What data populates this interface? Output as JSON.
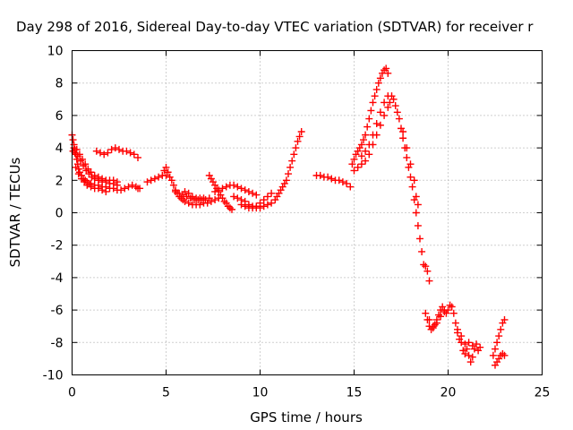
{
  "chart_data": {
    "type": "scatter",
    "title": "Day 298 of 2016, Sidereal Day-to-day VTEC variation (SDTVAR) for receiver r",
    "xlabel": "GPS time / hours",
    "ylabel": "SDTVAR / TECUs",
    "xlim": [
      0,
      25
    ],
    "ylim": [
      -10,
      10
    ],
    "xticks": [
      0,
      5,
      10,
      15,
      20,
      25
    ],
    "xtick_labels": [
      "0",
      "5",
      "10",
      "15",
      "20",
      "25"
    ],
    "yticks": [
      -10,
      -8,
      -6,
      -4,
      -2,
      0,
      2,
      4,
      6,
      8,
      10
    ],
    "ytick_labels": [
      "-10",
      "-8",
      "-6",
      "-4",
      "-2",
      "0",
      "2",
      "4",
      "6",
      "8",
      "10"
    ],
    "grid": true,
    "marker": "plus",
    "color": "#ff0000",
    "series": [
      {
        "points": [
          [
            0.0,
            4.8
          ],
          [
            0.05,
            4.5
          ],
          [
            0.1,
            4.2
          ],
          [
            0.15,
            3.9
          ],
          [
            0.2,
            3.6
          ],
          [
            0.25,
            3.3
          ],
          [
            0.3,
            3.0
          ],
          [
            0.35,
            2.7
          ],
          [
            0.4,
            2.5
          ],
          [
            0.5,
            2.3
          ],
          [
            0.6,
            2.1
          ],
          [
            0.7,
            2.0
          ],
          [
            0.8,
            1.9
          ],
          [
            0.9,
            1.8
          ],
          [
            1.0,
            1.8
          ],
          [
            1.2,
            1.7
          ],
          [
            1.4,
            1.7
          ],
          [
            1.6,
            1.6
          ],
          [
            1.8,
            1.6
          ],
          [
            2.0,
            1.5
          ],
          [
            2.2,
            1.5
          ],
          [
            2.4,
            1.4
          ],
          [
            2.6,
            1.4
          ],
          [
            2.8,
            1.5
          ],
          [
            3.0,
            1.6
          ],
          [
            3.2,
            1.7
          ],
          [
            3.4,
            1.6
          ],
          [
            3.5,
            1.5
          ],
          [
            0.05,
            3.8
          ],
          [
            0.15,
            3.7
          ],
          [
            0.3,
            3.5
          ],
          [
            0.45,
            3.2
          ],
          [
            0.6,
            2.9
          ],
          [
            0.75,
            2.6
          ],
          [
            0.9,
            2.4
          ],
          [
            1.05,
            2.2
          ],
          [
            1.2,
            2.1
          ],
          [
            1.4,
            2.0
          ],
          [
            1.6,
            1.9
          ],
          [
            1.8,
            1.9
          ],
          [
            2.0,
            1.8
          ],
          [
            2.2,
            1.8
          ],
          [
            2.4,
            1.7
          ],
          [
            0.1,
            4.0
          ],
          [
            0.25,
            3.9
          ],
          [
            0.4,
            3.6
          ],
          [
            0.55,
            3.3
          ],
          [
            0.7,
            3.0
          ],
          [
            0.85,
            2.7
          ],
          [
            1.0,
            2.5
          ],
          [
            1.2,
            2.3
          ],
          [
            1.4,
            2.2
          ],
          [
            1.6,
            2.1
          ],
          [
            1.8,
            2.0
          ],
          [
            2.0,
            2.0
          ],
          [
            2.2,
            2.0
          ],
          [
            2.4,
            1.9
          ],
          [
            0.2,
            2.8
          ],
          [
            0.35,
            2.4
          ],
          [
            0.5,
            2.1
          ],
          [
            0.65,
            1.9
          ],
          [
            0.8,
            1.7
          ],
          [
            1.0,
            1.6
          ],
          [
            1.2,
            1.5
          ],
          [
            1.4,
            1.5
          ],
          [
            1.6,
            1.4
          ],
          [
            1.8,
            1.3
          ],
          [
            1.3,
            3.8
          ],
          [
            1.5,
            3.7
          ],
          [
            1.7,
            3.6
          ],
          [
            1.9,
            3.7
          ],
          [
            2.1,
            3.9
          ],
          [
            2.3,
            4.0
          ],
          [
            2.5,
            3.9
          ],
          [
            2.7,
            3.8
          ],
          [
            2.9,
            3.8
          ],
          [
            3.1,
            3.7
          ],
          [
            3.3,
            3.6
          ],
          [
            3.5,
            3.4
          ],
          [
            3.6,
            1.5
          ],
          [
            5.2,
            2.2
          ],
          [
            5.0,
            2.3
          ],
          [
            4.8,
            2.3
          ],
          [
            4.6,
            2.2
          ],
          [
            4.4,
            2.1
          ],
          [
            4.2,
            2.0
          ],
          [
            4.0,
            1.9
          ],
          [
            5.0,
            2.8
          ],
          [
            4.9,
            2.6
          ],
          [
            5.1,
            2.5
          ],
          [
            5.3,
            2.0
          ],
          [
            5.4,
            1.7
          ],
          [
            5.5,
            1.4
          ],
          [
            5.6,
            1.2
          ],
          [
            5.7,
            1.0
          ],
          [
            5.8,
            0.9
          ],
          [
            5.9,
            0.8
          ],
          [
            6.0,
            0.7
          ],
          [
            6.2,
            0.6
          ],
          [
            6.4,
            0.5
          ],
          [
            6.6,
            0.5
          ],
          [
            6.8,
            0.5
          ],
          [
            7.0,
            0.6
          ],
          [
            7.2,
            0.6
          ],
          [
            7.4,
            0.7
          ],
          [
            7.6,
            0.8
          ],
          [
            7.8,
            0.9
          ],
          [
            5.5,
            1.3
          ],
          [
            5.7,
            1.2
          ],
          [
            5.9,
            1.1
          ],
          [
            6.1,
            1.0
          ],
          [
            6.3,
            0.9
          ],
          [
            6.5,
            0.8
          ],
          [
            6.7,
            0.8
          ],
          [
            6.9,
            0.8
          ],
          [
            7.1,
            0.8
          ],
          [
            7.3,
            0.9
          ],
          [
            6.0,
            1.3
          ],
          [
            6.2,
            1.2
          ],
          [
            6.4,
            1.0
          ],
          [
            6.6,
            0.9
          ],
          [
            6.8,
            0.9
          ],
          [
            7.0,
            0.9
          ],
          [
            7.3,
            2.3
          ],
          [
            7.4,
            2.1
          ],
          [
            7.5,
            1.9
          ],
          [
            7.6,
            1.7
          ],
          [
            7.7,
            1.5
          ],
          [
            7.8,
            1.3
          ],
          [
            7.9,
            1.1
          ],
          [
            8.0,
            0.9
          ],
          [
            8.1,
            0.7
          ],
          [
            8.2,
            0.6
          ],
          [
            8.3,
            0.4
          ],
          [
            8.4,
            0.3
          ],
          [
            8.5,
            0.2
          ],
          [
            7.6,
            1.3
          ],
          [
            7.8,
            1.4
          ],
          [
            8.0,
            1.5
          ],
          [
            8.2,
            1.6
          ],
          [
            8.4,
            1.7
          ],
          [
            8.6,
            1.7
          ],
          [
            8.8,
            1.6
          ],
          [
            9.0,
            1.5
          ],
          [
            9.2,
            1.4
          ],
          [
            9.4,
            1.3
          ],
          [
            9.6,
            1.2
          ],
          [
            9.8,
            1.1
          ],
          [
            8.6,
            1.0
          ],
          [
            8.8,
            0.9
          ],
          [
            9.0,
            0.8
          ],
          [
            9.2,
            0.7
          ],
          [
            9.4,
            0.5
          ],
          [
            9.6,
            0.4
          ],
          [
            9.8,
            0.3
          ],
          [
            10.0,
            0.3
          ],
          [
            10.2,
            0.4
          ],
          [
            10.4,
            0.5
          ],
          [
            10.6,
            0.6
          ],
          [
            10.8,
            0.8
          ],
          [
            9.0,
            0.5
          ],
          [
            9.2,
            0.4
          ],
          [
            9.4,
            0.3
          ],
          [
            9.6,
            0.3
          ],
          [
            9.8,
            0.4
          ],
          [
            10.0,
            0.6
          ],
          [
            10.2,
            0.8
          ],
          [
            10.4,
            1.0
          ],
          [
            10.6,
            1.2
          ],
          [
            10.9,
            1.0
          ],
          [
            11.0,
            1.2
          ],
          [
            11.1,
            1.4
          ],
          [
            11.2,
            1.6
          ],
          [
            11.3,
            1.8
          ],
          [
            11.4,
            2.0
          ],
          [
            11.5,
            2.4
          ],
          [
            11.6,
            2.8
          ],
          [
            11.7,
            3.2
          ],
          [
            11.8,
            3.6
          ],
          [
            11.9,
            4.0
          ],
          [
            12.0,
            4.4
          ],
          [
            12.1,
            4.7
          ],
          [
            12.2,
            5.0
          ],
          [
            13.0,
            2.3
          ],
          [
            13.2,
            2.3
          ],
          [
            13.4,
            2.2
          ],
          [
            13.6,
            2.2
          ],
          [
            13.8,
            2.1
          ],
          [
            14.0,
            2.0
          ],
          [
            14.2,
            2.0
          ],
          [
            14.4,
            1.9
          ],
          [
            14.6,
            1.8
          ],
          [
            14.8,
            1.6
          ],
          [
            14.9,
            3.0
          ],
          [
            15.0,
            3.3
          ],
          [
            15.1,
            3.6
          ],
          [
            15.2,
            3.8
          ],
          [
            15.3,
            4.0
          ],
          [
            15.4,
            4.2
          ],
          [
            15.5,
            4.5
          ],
          [
            15.6,
            4.8
          ],
          [
            15.7,
            5.3
          ],
          [
            15.8,
            5.8
          ],
          [
            15.9,
            6.3
          ],
          [
            16.0,
            6.8
          ],
          [
            16.1,
            7.2
          ],
          [
            16.2,
            7.6
          ],
          [
            16.3,
            8.0
          ],
          [
            16.4,
            8.3
          ],
          [
            16.5,
            8.6
          ],
          [
            16.6,
            8.8
          ],
          [
            16.7,
            8.9
          ],
          [
            16.8,
            8.6
          ],
          [
            15.0,
            2.6
          ],
          [
            15.2,
            2.8
          ],
          [
            15.4,
            3.0
          ],
          [
            15.6,
            3.2
          ],
          [
            15.8,
            3.6
          ],
          [
            16.0,
            4.2
          ],
          [
            16.2,
            4.8
          ],
          [
            16.4,
            5.4
          ],
          [
            16.6,
            6.0
          ],
          [
            16.8,
            6.5
          ],
          [
            15.4,
            3.5
          ],
          [
            15.6,
            3.8
          ],
          [
            15.8,
            4.2
          ],
          [
            16.0,
            4.8
          ],
          [
            16.2,
            5.5
          ],
          [
            16.4,
            6.2
          ],
          [
            16.6,
            6.8
          ],
          [
            16.8,
            7.2
          ],
          [
            16.9,
            6.8
          ],
          [
            17.0,
            7.2
          ],
          [
            17.1,
            7.0
          ],
          [
            17.2,
            6.6
          ],
          [
            17.3,
            6.2
          ],
          [
            17.4,
            5.8
          ],
          [
            17.5,
            5.2
          ],
          [
            17.6,
            4.6
          ],
          [
            17.7,
            4.0
          ],
          [
            17.8,
            3.4
          ],
          [
            17.9,
            2.8
          ],
          [
            18.0,
            2.2
          ],
          [
            18.1,
            1.6
          ],
          [
            18.2,
            0.8
          ],
          [
            18.3,
            0.0
          ],
          [
            18.4,
            -0.8
          ],
          [
            18.5,
            -1.6
          ],
          [
            18.6,
            -2.4
          ],
          [
            18.7,
            -3.2
          ],
          [
            18.8,
            -3.3
          ],
          [
            18.9,
            -3.6
          ],
          [
            19.0,
            -4.2
          ],
          [
            17.6,
            5.0
          ],
          [
            17.8,
            4.0
          ],
          [
            18.0,
            3.0
          ],
          [
            18.2,
            2.0
          ],
          [
            18.3,
            1.0
          ],
          [
            18.4,
            0.5
          ],
          [
            18.8,
            -6.2
          ],
          [
            18.9,
            -6.6
          ],
          [
            19.0,
            -7.0
          ],
          [
            19.1,
            -7.2
          ],
          [
            19.2,
            -7.1
          ],
          [
            19.3,
            -6.9
          ],
          [
            19.4,
            -6.6
          ],
          [
            19.5,
            -6.3
          ],
          [
            19.6,
            -6.0
          ],
          [
            19.7,
            -5.8
          ],
          [
            19.8,
            -6.0
          ],
          [
            19.9,
            -6.2
          ],
          [
            20.0,
            -6.0
          ],
          [
            20.1,
            -5.7
          ],
          [
            20.2,
            -5.8
          ],
          [
            20.3,
            -6.2
          ],
          [
            20.4,
            -6.8
          ],
          [
            20.5,
            -7.4
          ],
          [
            20.6,
            -7.8
          ],
          [
            20.7,
            -8.0
          ],
          [
            19.0,
            -6.6
          ],
          [
            19.2,
            -7.0
          ],
          [
            19.4,
            -6.8
          ],
          [
            19.6,
            -6.4
          ],
          [
            19.8,
            -6.1
          ],
          [
            20.8,
            -8.5
          ],
          [
            20.9,
            -8.7
          ],
          [
            21.0,
            -8.4
          ],
          [
            21.1,
            -8.8
          ],
          [
            21.2,
            -9.2
          ],
          [
            21.3,
            -8.9
          ],
          [
            21.4,
            -8.4
          ],
          [
            21.5,
            -8.1
          ],
          [
            21.6,
            -8.5
          ],
          [
            21.7,
            -8.3
          ],
          [
            20.5,
            -7.2
          ],
          [
            20.7,
            -7.6
          ],
          [
            20.9,
            -8.1
          ],
          [
            21.1,
            -8.0
          ],
          [
            21.3,
            -8.2
          ],
          [
            22.5,
            -9.4
          ],
          [
            22.6,
            -9.2
          ],
          [
            22.7,
            -9.0
          ],
          [
            22.8,
            -8.8
          ],
          [
            22.9,
            -8.7
          ],
          [
            23.0,
            -8.8
          ],
          [
            22.4,
            -8.8
          ],
          [
            22.5,
            -8.4
          ],
          [
            22.6,
            -8.0
          ],
          [
            22.7,
            -7.6
          ],
          [
            22.8,
            -7.2
          ],
          [
            22.9,
            -6.8
          ],
          [
            23.0,
            -6.6
          ]
        ]
      }
    ]
  }
}
